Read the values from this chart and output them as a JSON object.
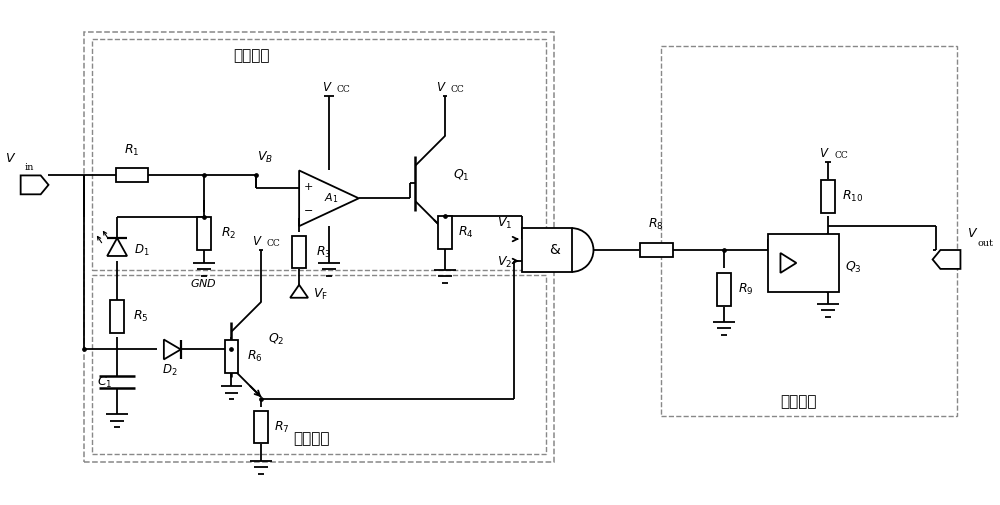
{
  "bg_color": "#ffffff",
  "line_color": "#000000",
  "dashed_color": "#888888",
  "box1_label": "比较电路",
  "box2_label": "延时电路",
  "box3_label": "隔离电路"
}
